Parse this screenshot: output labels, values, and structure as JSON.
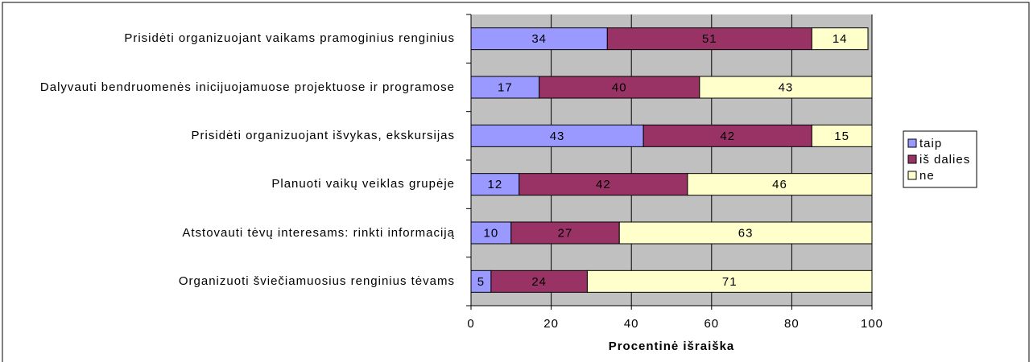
{
  "chart_data": {
    "type": "stacked-bar-horizontal",
    "categories": [
      "Prisidėti organizuojant vaikams pramoginius renginius",
      "Dalyvauti bendruomenės inicijuojamuose projektuose ir programose",
      "Prisidėti organizuojant išvykas, ekskursijas",
      "Planuoti vaikų veiklas grupėje",
      "Atstovauti tėvų interesams: rinkti informaciją",
      "Organizuoti šviečiamuosius renginius tėvams"
    ],
    "series": [
      {
        "name": "taip",
        "color": "#9999ff",
        "values": [
          34,
          17,
          43,
          12,
          10,
          5
        ]
      },
      {
        "name": "iš dalies",
        "color": "#993366",
        "values": [
          51,
          40,
          42,
          42,
          27,
          24
        ]
      },
      {
        "name": "ne",
        "color": "#ffffcc",
        "values": [
          14,
          43,
          15,
          46,
          63,
          71
        ]
      }
    ],
    "xlabel": "Procentinė išraiška",
    "xlim": [
      0,
      100
    ],
    "xticks": [
      0,
      20,
      40,
      60,
      80,
      100
    ],
    "grid": true,
    "legend": "right",
    "background": "#c0c0c0"
  }
}
